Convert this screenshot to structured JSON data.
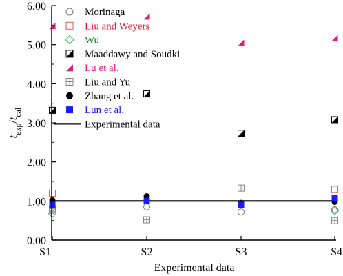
{
  "chart_data": {
    "type": "scatter",
    "title": "",
    "xlabel": "Experimental data",
    "ylabel": {
      "t1": "t",
      "s1": "exp",
      "slash": "/",
      "t2": "t",
      "s2": "cal"
    },
    "categories": [
      "S1",
      "S2",
      "S3",
      "S4"
    ],
    "ylim": [
      0,
      6
    ],
    "yticks": [
      "0.00",
      "1.00",
      "2.00",
      "3.00",
      "4.00",
      "5.00",
      "6.00"
    ],
    "grid": false,
    "legend_position": "top-left",
    "reference_line": {
      "name": "Experimental data",
      "value": 1.0,
      "color": "#000000"
    },
    "series": [
      {
        "name": "Morinaga",
        "marker": "circle-open",
        "color": "#808080",
        "label_color": "#000000",
        "values": [
          0.75,
          0.85,
          0.72,
          0.78
        ]
      },
      {
        "name": "Liu and Weyers",
        "marker": "square-open",
        "color": "#e06666",
        "label_color": "#e8102a",
        "values": [
          1.2,
          null,
          null,
          1.3
        ]
      },
      {
        "name": "Wu",
        "marker": "diamond-open",
        "color": "#44aa66",
        "label_color": "#1a7a1a",
        "values": [
          0.68,
          null,
          null,
          0.75
        ]
      },
      {
        "name": "Maaddawy and Soudki",
        "marker": "half-square",
        "color": "#000000",
        "label_color": "#000000",
        "values": [
          3.32,
          3.74,
          2.73,
          3.08
        ]
      },
      {
        "name": "Lu et al.",
        "marker": "triangle",
        "color": "#e8187c",
        "label_color": "#e8187c",
        "values": [
          5.48,
          5.72,
          5.05,
          5.17
        ]
      },
      {
        "name": "Liu and Yu",
        "marker": "square-cross",
        "color": "#888888",
        "label_color": "#000000",
        "values": [
          0.8,
          0.52,
          1.33,
          0.5
        ]
      },
      {
        "name": "Zhang et al.",
        "marker": "circle-filled",
        "color": "#000000",
        "label_color": "#000000",
        "values": [
          1.02,
          1.12,
          0.95,
          0.98
        ]
      },
      {
        "name": "Lun et al.",
        "marker": "square-filled",
        "color": "#1a1aff",
        "label_color": "#1a1aff",
        "values": [
          0.9,
          1.0,
          0.9,
          1.08
        ]
      }
    ]
  }
}
